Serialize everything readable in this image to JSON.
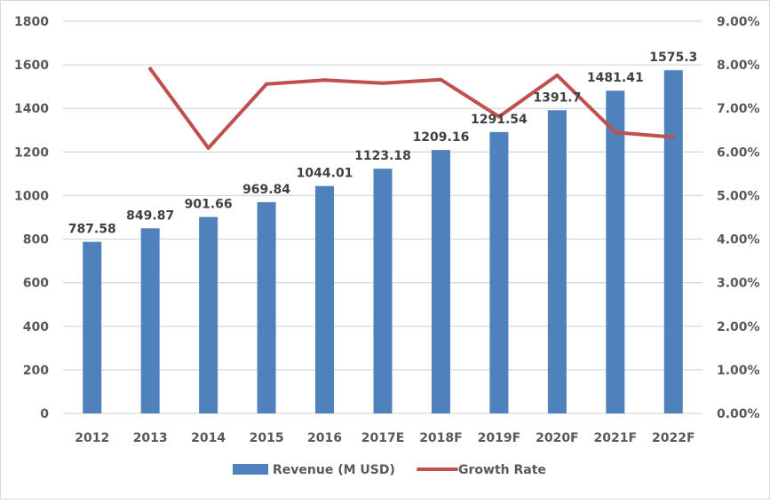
{
  "chart_data": {
    "type": "bar",
    "title": "",
    "xlabel": "",
    "ylabel": "",
    "categories": [
      "2012",
      "2013",
      "2014",
      "2015",
      "2016",
      "2017E",
      "2018F",
      "2019F",
      "2020F",
      "2021F",
      "2022F"
    ],
    "series": [
      {
        "name": "Revenue (M USD)",
        "type": "bar",
        "axis": "left",
        "color": "#4f81bd",
        "values": [
          787.58,
          849.87,
          901.66,
          969.84,
          1044.01,
          1123.18,
          1209.16,
          1291.54,
          1391.7,
          1481.41,
          1575.3
        ],
        "data_labels": [
          "787.58",
          "849.87",
          "901.66",
          "969.84",
          "1044.01",
          "1123.18",
          "1209.16",
          "1291.54",
          "1391.7",
          "1481.41",
          "1575.3"
        ]
      },
      {
        "name": "Growth Rate",
        "type": "line",
        "axis": "right",
        "color": "#c0504d",
        "values": [
          null,
          0.0791,
          0.0609,
          0.0756,
          0.0765,
          0.0758,
          0.0766,
          0.0681,
          0.0776,
          0.0645,
          0.0634
        ]
      }
    ],
    "ylim": [
      0,
      1800
    ],
    "yticks": [
      0,
      200,
      400,
      600,
      800,
      1000,
      1200,
      1400,
      1600,
      1800
    ],
    "y2lim": [
      0,
      0.09
    ],
    "y2ticks": [
      "0.00%",
      "1.00%",
      "2.00%",
      "3.00%",
      "4.00%",
      "5.00%",
      "6.00%",
      "7.00%",
      "8.00%",
      "9.00%"
    ],
    "grid": true,
    "legend_position": "bottom"
  }
}
